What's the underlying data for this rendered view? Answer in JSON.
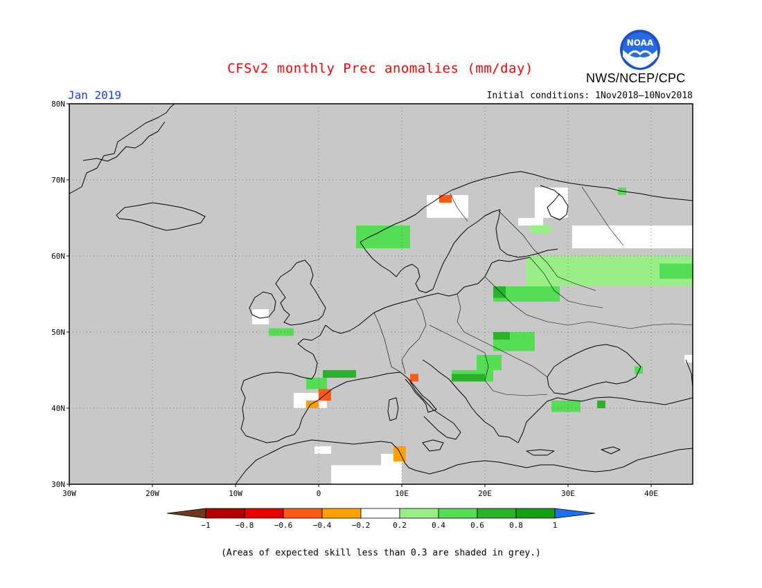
{
  "header": {
    "title": "CFSv2 monthly Prec anomalies (mm/day)",
    "agency": "NWS/NCEP/CPC",
    "logo_text": "NOAA",
    "target_month": "Jan 2019",
    "initial_conditions": "Initial conditions: 1Nov2018–10Nov2018"
  },
  "map": {
    "projection": "lat-lon",
    "lon_range": [
      -30,
      45
    ],
    "lat_range": [
      30,
      80
    ],
    "lat_ticks": [
      "30N",
      "40N",
      "50N",
      "60N",
      "70N",
      "80N"
    ],
    "lon_ticks": [
      "30W",
      "20W",
      "10W",
      "0",
      "10E",
      "20E",
      "30E",
      "40E"
    ],
    "lat_tick_values": [
      30,
      40,
      50,
      60,
      70,
      80
    ],
    "lon_tick_values": [
      -30,
      -20,
      -10,
      0,
      10,
      20,
      30,
      40
    ],
    "gridlines": "dotted",
    "skill_mask_color": "#c8c8c8"
  },
  "colorbar": {
    "labels": [
      "−1",
      "−0.8",
      "−0.6",
      "−0.4",
      "−0.2",
      "0.2",
      "0.4",
      "0.6",
      "0.8",
      "1"
    ],
    "colors": {
      "below_min": "#6b3a1f",
      "bins": [
        "#b30000",
        "#e60000",
        "#ff5a14",
        "#ffa100",
        "#ffffff",
        "#99ee88",
        "#55dd55",
        "#2ab22a",
        "#14a014"
      ],
      "above_max": "#1e6ef0"
    }
  },
  "footnote": "(Areas of expected skill less than 0.3 are shaded in grey.)",
  "anomaly_regions": [
    {
      "name": "white-north-russia",
      "value": 0.0,
      "lon": [
        30.5,
        45
      ],
      "lat": [
        61,
        64
      ]
    },
    {
      "name": "green-light-russia",
      "value": 0.3,
      "lon": [
        25,
        45
      ],
      "lat": [
        56,
        60
      ]
    },
    {
      "name": "green-mid-east",
      "value": 0.5,
      "lon": [
        41,
        45
      ],
      "lat": [
        57,
        59
      ]
    },
    {
      "name": "green-baltic",
      "value": 0.5,
      "lon": [
        21,
        29
      ],
      "lat": [
        54,
        56
      ]
    },
    {
      "name": "green-poland-dark",
      "value": 0.6,
      "lon": [
        21,
        22.5
      ],
      "lat": [
        54.5,
        56
      ]
    },
    {
      "name": "green-hungary",
      "value": 0.5,
      "lon": [
        21,
        26
      ],
      "lat": [
        47.5,
        50
      ]
    },
    {
      "name": "green-hungary-dark",
      "value": 0.7,
      "lon": [
        21,
        23
      ],
      "lat": [
        49,
        50
      ]
    },
    {
      "name": "green-balkan",
      "value": 0.5,
      "lon": [
        16,
        21
      ],
      "lat": [
        43.5,
        45
      ]
    },
    {
      "name": "green-balkan-dark",
      "value": 0.7,
      "lon": [
        16,
        20
      ],
      "lat": [
        43.5,
        44.5
      ]
    },
    {
      "name": "green-adriatic",
      "value": 0.4,
      "lon": [
        19,
        22
      ],
      "lat": [
        45,
        47
      ]
    },
    {
      "name": "green-turkey",
      "value": 0.4,
      "lon": [
        28,
        31.5
      ],
      "lat": [
        39.5,
        41
      ]
    },
    {
      "name": "green-turkey-dark",
      "value": 0.7,
      "lon": [
        33.5,
        34.5
      ],
      "lat": [
        40,
        41
      ]
    },
    {
      "name": "green-black-sea-east",
      "value": 0.5,
      "lon": [
        38,
        39
      ],
      "lat": [
        44.5,
        45.5
      ]
    },
    {
      "name": "green-france-south",
      "value": 0.6,
      "lon": [
        0.5,
        4.5
      ],
      "lat": [
        44,
        45
      ]
    },
    {
      "name": "green-pyrenees",
      "value": 0.5,
      "lon": [
        -1.5,
        1
      ],
      "lat": [
        42.5,
        44
      ]
    },
    {
      "name": "green-brittany",
      "value": 0.4,
      "lon": [
        -6,
        -3
      ],
      "lat": [
        49.5,
        50.5
      ]
    },
    {
      "name": "green-norway-coast",
      "value": 0.4,
      "lon": [
        4.5,
        11
      ],
      "lat": [
        61,
        64
      ]
    },
    {
      "name": "green-finland-north",
      "value": 0.3,
      "lon": [
        25.5,
        28
      ],
      "lat": [
        63,
        64
      ]
    },
    {
      "name": "green-kola",
      "value": 0.4,
      "lon": [
        36,
        37
      ],
      "lat": [
        68,
        69
      ]
    },
    {
      "name": "white-lapland",
      "value": 0.0,
      "lon": [
        26,
        30
      ],
      "lat": [
        65,
        69
      ]
    },
    {
      "name": "white-north-norway",
      "value": 0.0,
      "lon": [
        13,
        18
      ],
      "lat": [
        65,
        68
      ]
    },
    {
      "name": "white-finland",
      "value": 0.0,
      "lon": [
        24,
        27
      ],
      "lat": [
        64,
        65
      ]
    },
    {
      "name": "white-spain",
      "value": 0.0,
      "lon": [
        -3,
        1
      ],
      "lat": [
        40,
        42
      ]
    },
    {
      "name": "white-ireland",
      "value": 0.0,
      "lon": [
        -8,
        -6
      ],
      "lat": [
        51,
        53
      ]
    },
    {
      "name": "white-north-africa",
      "value": 0.0,
      "lon": [
        1.5,
        10
      ],
      "lat": [
        30,
        32.5
      ]
    },
    {
      "name": "white-tunisia",
      "value": 0.0,
      "lon": [
        7.5,
        10
      ],
      "lat": [
        32,
        34
      ]
    },
    {
      "name": "white-algeria",
      "value": 0.0,
      "lon": [
        -0.5,
        1.5
      ],
      "lat": [
        34,
        35
      ]
    },
    {
      "name": "white-east-caucasus",
      "value": 0.0,
      "lon": [
        44,
        45
      ],
      "lat": [
        46,
        47
      ]
    },
    {
      "name": "orange-spain",
      "value": -0.35,
      "lon": [
        -1.5,
        0
      ],
      "lat": [
        40,
        41
      ]
    },
    {
      "name": "red-spain",
      "value": -0.55,
      "lon": [
        0,
        1.5
      ],
      "lat": [
        41,
        42.5
      ]
    },
    {
      "name": "red-italy",
      "value": -0.55,
      "lon": [
        11,
        12
      ],
      "lat": [
        43.5,
        44.5
      ]
    },
    {
      "name": "orange-tunisia",
      "value": -0.35,
      "lon": [
        9,
        10.5
      ],
      "lat": [
        33,
        35
      ]
    },
    {
      "name": "orange-norway",
      "value": -0.45,
      "lon": [
        14.5,
        16
      ],
      "lat": [
        67,
        68
      ]
    }
  ]
}
